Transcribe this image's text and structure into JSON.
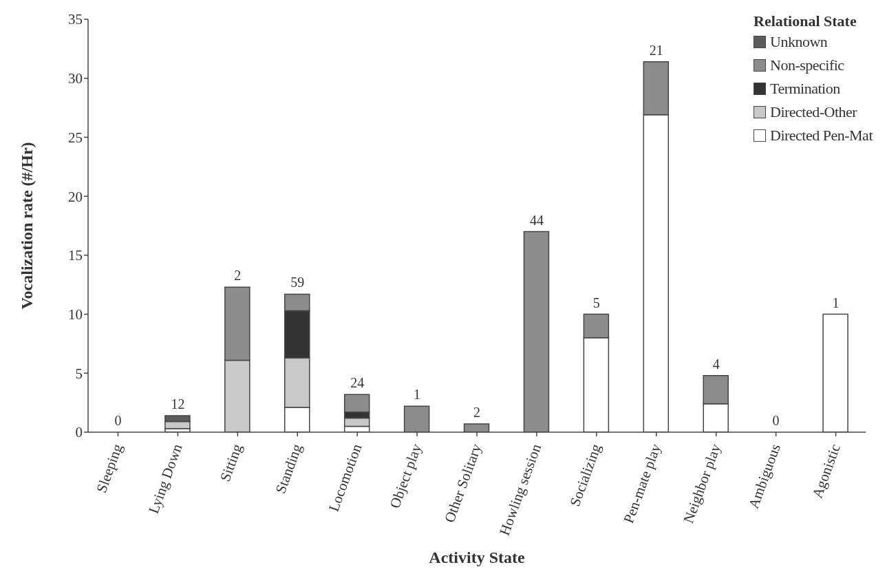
{
  "chart_data": {
    "type": "bar",
    "stacked": true,
    "xlabel": "Activity State",
    "ylabel": "Vocalization rate (#/Hr)",
    "legend_title": "Relational State",
    "legend": "top right",
    "grid": false,
    "categories": [
      "Sleeping",
      "Lying Down",
      "Sitting",
      "Standing",
      "Locomotion",
      "Object play",
      "Other Solitary",
      "Howling session",
      "Socializing",
      "Pen-mate play",
      "Neighbor play",
      "Ambiguous",
      "Agonistic"
    ],
    "series": [
      {
        "name": "Directed Pen-Mat",
        "color": "#ffffff",
        "values": [
          0,
          0.3,
          0,
          2.1,
          0.5,
          0,
          0,
          0,
          8,
          26.9,
          2.4,
          0,
          10
        ]
      },
      {
        "name": "Directed-Other",
        "color": "#c8c8c8",
        "values": [
          0,
          0.6,
          6.1,
          4.2,
          0.7,
          0,
          0,
          0,
          0,
          0,
          0,
          0,
          0
        ]
      },
      {
        "name": "Termination",
        "color": "#333333",
        "values": [
          0,
          0,
          0,
          4,
          0.5,
          0,
          0,
          0,
          0,
          0,
          0,
          0,
          0
        ]
      },
      {
        "name": "Non-specific",
        "color": "#8c8c8c",
        "values": [
          0,
          0,
          6.2,
          1.4,
          1.5,
          2.2,
          0.7,
          17,
          2,
          4.5,
          2.4,
          0,
          0
        ]
      },
      {
        "name": "Unknown",
        "color": "#5c5c5c",
        "values": [
          0,
          0.5,
          0,
          0,
          0,
          0,
          0,
          0,
          0,
          0,
          0,
          0,
          0
        ]
      }
    ],
    "ylim": [
      0,
      35
    ],
    "yticks": [
      0,
      5,
      10,
      15,
      20,
      25,
      30,
      35
    ],
    "annotations": [
      {
        "text": "0",
        "x": "Sleeping",
        "y": 0
      },
      {
        "text": "12",
        "x": "Lying Down",
        "y": 1.4
      },
      {
        "text": "2",
        "x": "Sitting",
        "y": 12.3
      },
      {
        "text": "59",
        "x": "Standing",
        "y": 11.7
      },
      {
        "text": "24",
        "x": "Locomotion",
        "y": 3.2
      },
      {
        "text": "1",
        "x": "Object play",
        "y": 2.2
      },
      {
        "text": "2",
        "x": "Other Solitary",
        "y": 0.7
      },
      {
        "text": "44",
        "x": "Howling session",
        "y": 17
      },
      {
        "text": "5",
        "x": "Socializing",
        "y": 10
      },
      {
        "text": "21",
        "x": "Pen-mate play",
        "y": 31.4
      },
      {
        "text": "4",
        "x": "Neighbor play",
        "y": 4.8
      },
      {
        "text": "0",
        "x": "Ambiguous",
        "y": 0
      },
      {
        "text": "1",
        "x": "Agonistic",
        "y": 10
      }
    ]
  }
}
